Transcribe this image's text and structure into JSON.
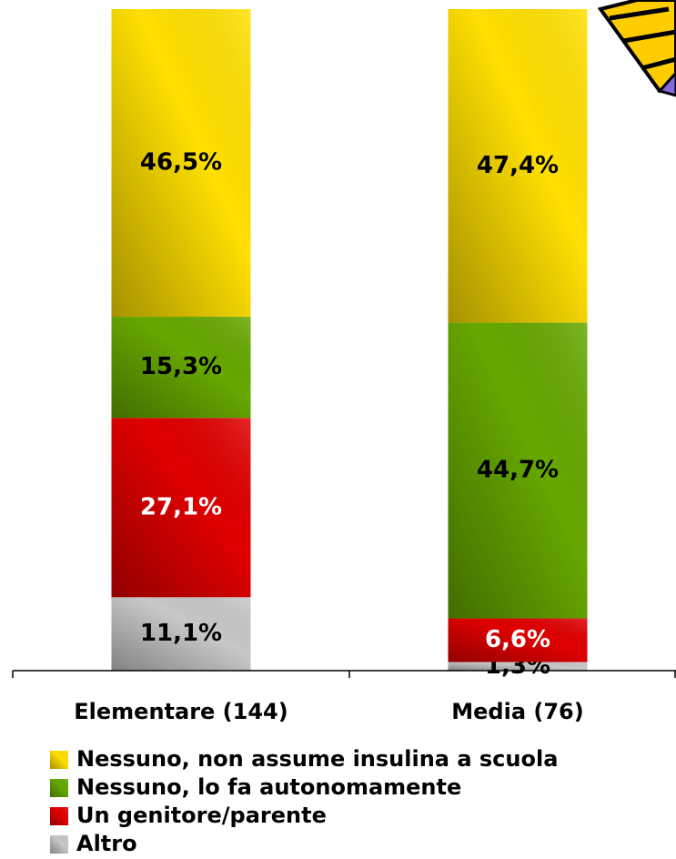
{
  "chart_data": {
    "type": "stacked_bar",
    "categories": [
      "Elementare (144)",
      "Media (76)"
    ],
    "ylim": [
      0,
      100
    ],
    "series": [
      {
        "name": "Altro",
        "color": "#c8c8c8",
        "label_color": "#000000",
        "values": [
          11.1,
          1.3
        ],
        "value_labels": [
          "11,1%",
          "1,3%"
        ]
      },
      {
        "name": "Un genitore/parente",
        "color": "#e00000",
        "label_color": "#ffffff",
        "values": [
          27.1,
          6.6
        ],
        "value_labels": [
          "27,1%",
          "6,6%"
        ]
      },
      {
        "name": "Nessuno, lo fa autonomamente",
        "color": "#66a800",
        "label_color": "#000000",
        "values": [
          15.3,
          44.7
        ],
        "value_labels": [
          "15,3%",
          "44,7%"
        ]
      },
      {
        "name": "Nessuno, non assume insulina a scuola",
        "color": "#ffe000",
        "label_color": "#000000",
        "values": [
          46.5,
          47.4
        ],
        "value_labels": [
          "46,5%",
          "47,4%"
        ]
      }
    ]
  }
}
